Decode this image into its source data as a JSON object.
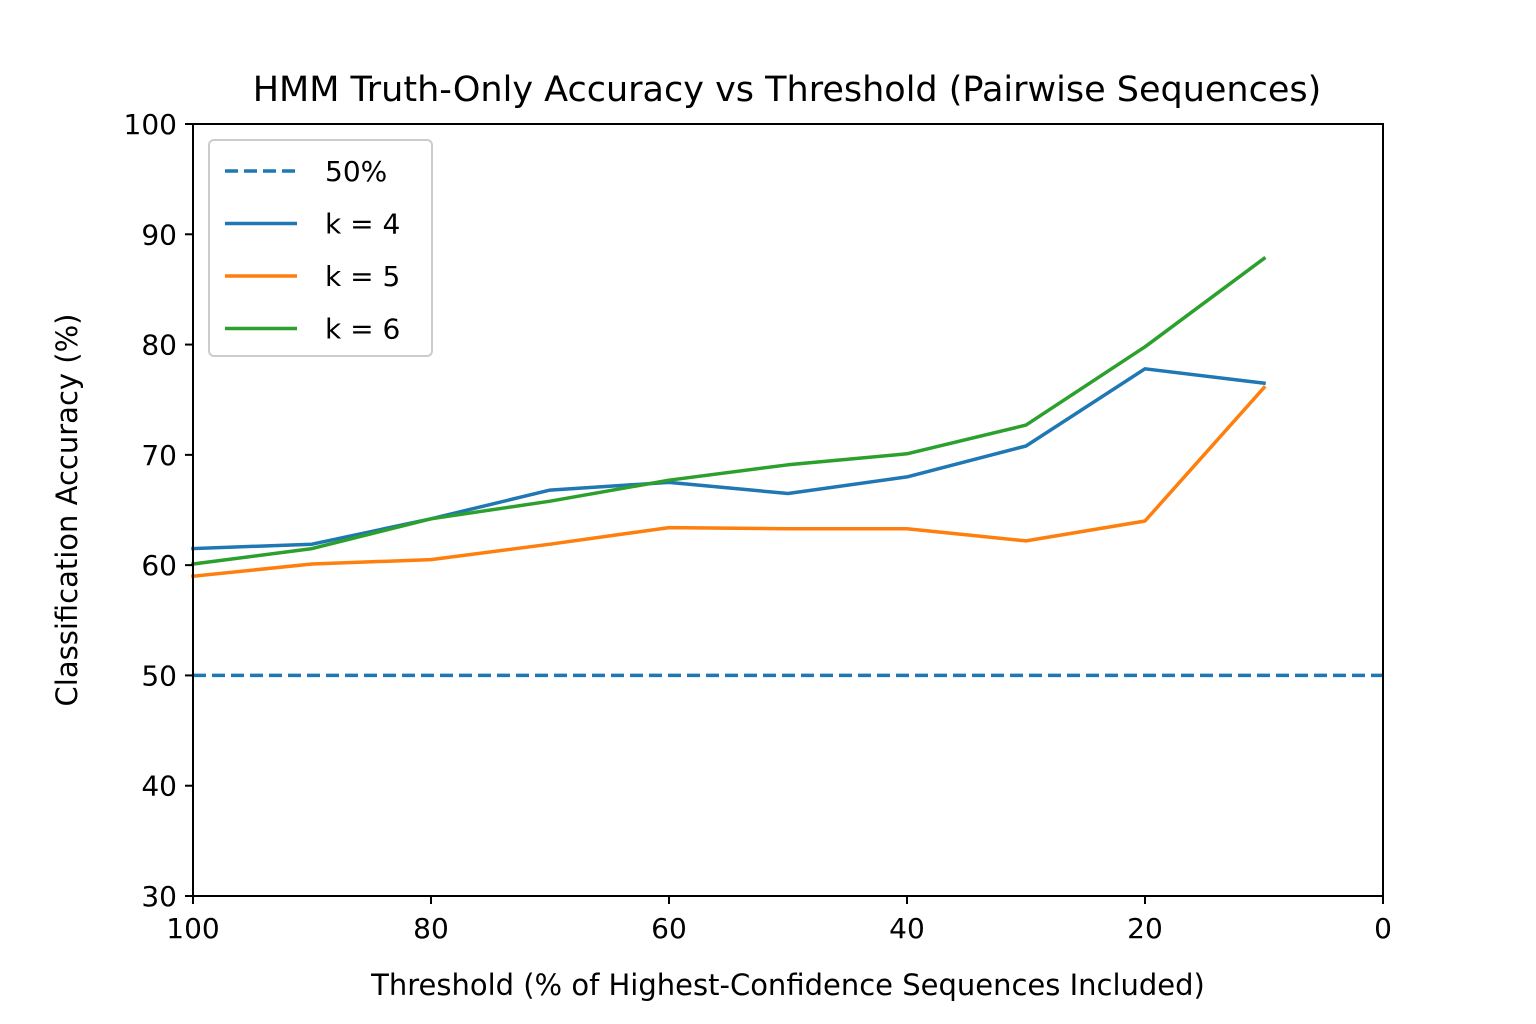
{
  "chart_data": {
    "type": "line",
    "title": "HMM Truth-Only Accuracy vs Threshold (Pairwise Sequences)",
    "xlabel": "Threshold (% of Highest-Confidence Sequences Included)",
    "ylabel": "Classification Accuracy (%)",
    "xlim": [
      100,
      0
    ],
    "ylim": [
      30,
      100
    ],
    "xticks": [
      100,
      80,
      60,
      40,
      20,
      0
    ],
    "yticks": [
      30,
      40,
      50,
      60,
      70,
      80,
      90,
      100
    ],
    "grid": false,
    "legend_position": "upper-left",
    "reference_line": {
      "name": "50%",
      "y": 50,
      "color": "#1f77b4",
      "style": "dashed"
    },
    "x": [
      100,
      90,
      80,
      70,
      60,
      50,
      40,
      30,
      20,
      10
    ],
    "series": [
      {
        "name": "k = 4",
        "color": "#1f77b4",
        "values": [
          61.5,
          61.9,
          64.2,
          66.8,
          67.5,
          66.5,
          68.0,
          70.8,
          77.8,
          76.5
        ]
      },
      {
        "name": "k = 5",
        "color": "#ff7f0e",
        "values": [
          59.0,
          60.1,
          60.5,
          61.9,
          63.4,
          63.3,
          63.3,
          62.2,
          64.0,
          76.1
        ]
      },
      {
        "name": "k = 6",
        "color": "#2ca02c",
        "values": [
          60.1,
          61.5,
          64.2,
          65.8,
          67.7,
          69.1,
          70.1,
          72.7,
          79.8,
          87.8
        ]
      }
    ]
  }
}
